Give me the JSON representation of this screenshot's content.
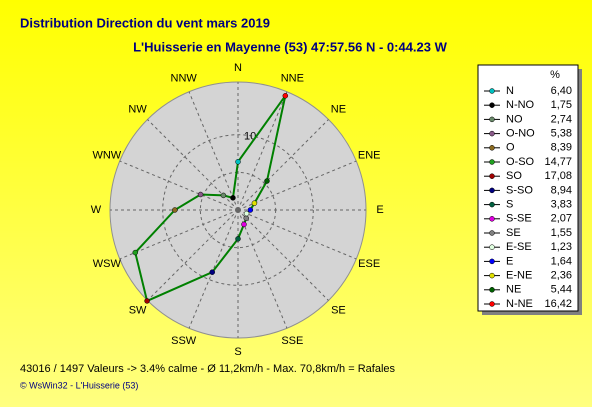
{
  "chart_data": {
    "type": "radar",
    "title": "Distribution Direction du vent   mars 2019",
    "subtitle": "L'Huisserie en Mayenne (53) 47:57.56 N - 0:44.23 W",
    "compass_labels": [
      "N",
      "NNE",
      "NE",
      "ENE",
      "E",
      "ESE",
      "SE",
      "SSE",
      "S",
      "SSW",
      "SW",
      "WSW",
      "W",
      "WNW",
      "NW",
      "NNW"
    ],
    "categories": [
      "N",
      "N-NO",
      "NO",
      "O-NO",
      "O",
      "O-SO",
      "SO",
      "S-SO",
      "S",
      "S-SE",
      "SE",
      "E-SE",
      "E",
      "E-NE",
      "NE",
      "N-NE"
    ],
    "values": [
      6.4,
      1.75,
      2.74,
      5.38,
      8.39,
      14.77,
      17.08,
      8.94,
      3.83,
      2.07,
      1.55,
      1.23,
      1.64,
      2.36,
      5.44,
      16.42
    ],
    "value_labels": [
      "6,40",
      "1,75",
      "2,74",
      "5,38",
      "8,39",
      "14,77",
      "17,08",
      "8,94",
      "3,83",
      "2,07",
      "1,55",
      "1,23",
      "1,64",
      "2,36",
      "5,44",
      "16,42"
    ],
    "marker_colors": [
      "#00c0c0",
      "#000000",
      "#6a8a6a",
      "#8a5a8a",
      "#8a6a20",
      "#20a020",
      "#a00000",
      "#000080",
      "#006040",
      "#e000e0",
      "#808080",
      "#e0ffe0",
      "#0000ff",
      "#e0e000",
      "#006000",
      "#ff0000"
    ],
    "color": "#008000",
    "rlim": [
      0,
      17
    ],
    "rgrid": [
      5,
      10
    ],
    "rticks": [
      10
    ],
    "legend_header": "%",
    "footer": "43016 / 1497 Valeurs  -> 3.4% calme   -   Ø 11,2km/h   -  Max. 70,8km/h = Rafales",
    "credit": "© WsWin32  -  L'Huisserie (53)"
  }
}
